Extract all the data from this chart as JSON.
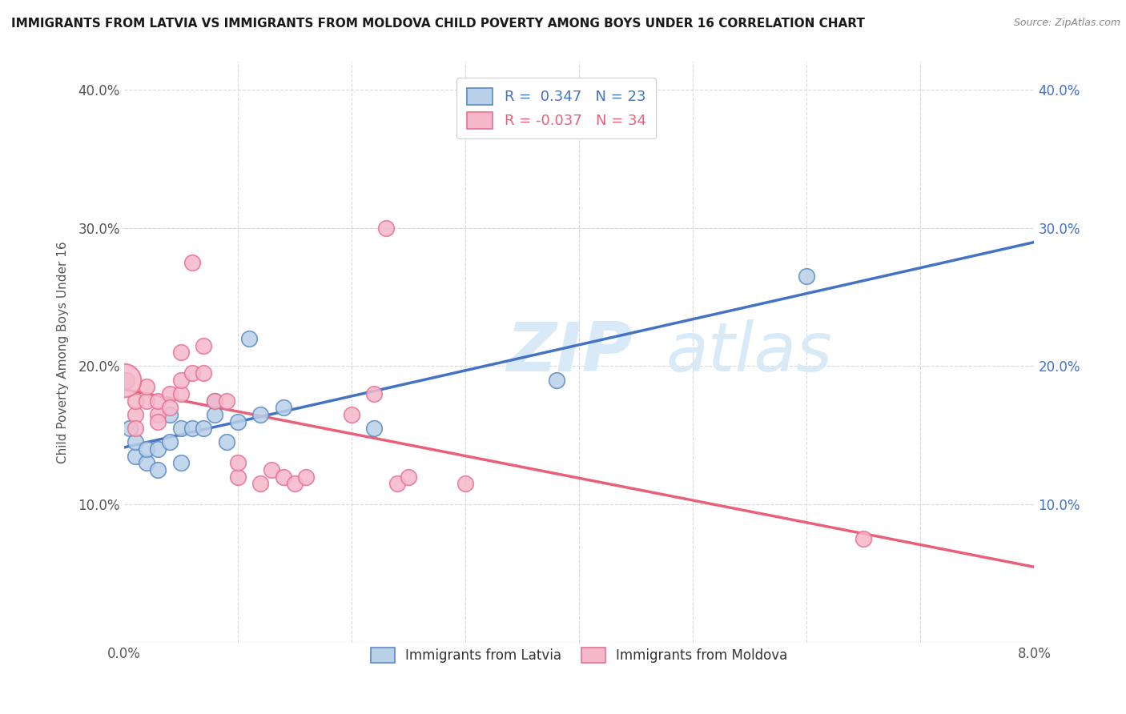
{
  "title": "IMMIGRANTS FROM LATVIA VS IMMIGRANTS FROM MOLDOVA CHILD POVERTY AMONG BOYS UNDER 16 CORRELATION CHART",
  "source": "Source: ZipAtlas.com",
  "ylabel": "Child Poverty Among Boys Under 16",
  "xlim": [
    0.0,
    0.08
  ],
  "ylim": [
    0.0,
    0.42
  ],
  "x_ticks": [
    0.0,
    0.01,
    0.02,
    0.03,
    0.04,
    0.05,
    0.06,
    0.07,
    0.08
  ],
  "y_ticks": [
    0.0,
    0.1,
    0.2,
    0.3,
    0.4
  ],
  "latvia_R": 0.347,
  "latvia_N": 23,
  "moldova_R": -0.037,
  "moldova_N": 34,
  "latvia_color": "#b8d0e8",
  "moldova_color": "#f5b8cb",
  "latvia_edge_color": "#5b8ac4",
  "moldova_edge_color": "#e87090",
  "latvia_line_color": "#4472c4",
  "moldova_line_color": "#e8607a",
  "latvia_x": [
    0.0005,
    0.001,
    0.001,
    0.002,
    0.002,
    0.003,
    0.003,
    0.004,
    0.004,
    0.005,
    0.005,
    0.006,
    0.007,
    0.008,
    0.008,
    0.009,
    0.01,
    0.011,
    0.012,
    0.014,
    0.022,
    0.038,
    0.06
  ],
  "latvia_y": [
    0.155,
    0.135,
    0.145,
    0.13,
    0.14,
    0.14,
    0.125,
    0.145,
    0.165,
    0.155,
    0.13,
    0.155,
    0.155,
    0.175,
    0.165,
    0.145,
    0.16,
    0.22,
    0.165,
    0.17,
    0.155,
    0.19,
    0.265
  ],
  "moldova_x": [
    0.0002,
    0.001,
    0.001,
    0.001,
    0.002,
    0.002,
    0.003,
    0.003,
    0.003,
    0.004,
    0.004,
    0.005,
    0.005,
    0.005,
    0.006,
    0.006,
    0.007,
    0.007,
    0.008,
    0.009,
    0.01,
    0.01,
    0.012,
    0.013,
    0.014,
    0.015,
    0.016,
    0.02,
    0.022,
    0.023,
    0.024,
    0.025,
    0.03,
    0.065
  ],
  "moldova_y": [
    0.19,
    0.165,
    0.155,
    0.175,
    0.175,
    0.185,
    0.165,
    0.175,
    0.16,
    0.18,
    0.17,
    0.18,
    0.21,
    0.19,
    0.195,
    0.275,
    0.195,
    0.215,
    0.175,
    0.175,
    0.12,
    0.13,
    0.115,
    0.125,
    0.12,
    0.115,
    0.12,
    0.165,
    0.18,
    0.3,
    0.115,
    0.12,
    0.115,
    0.075
  ],
  "moldova_large_x": [
    0.0
  ],
  "moldova_large_y": [
    0.19
  ],
  "watermark_zip": "ZIP",
  "watermark_atlas": "atlas",
  "watermark_color": "#d8eaf7",
  "background_color": "#ffffff",
  "grid_color": "#d8d8d8",
  "legend_border_color": "#cccccc"
}
